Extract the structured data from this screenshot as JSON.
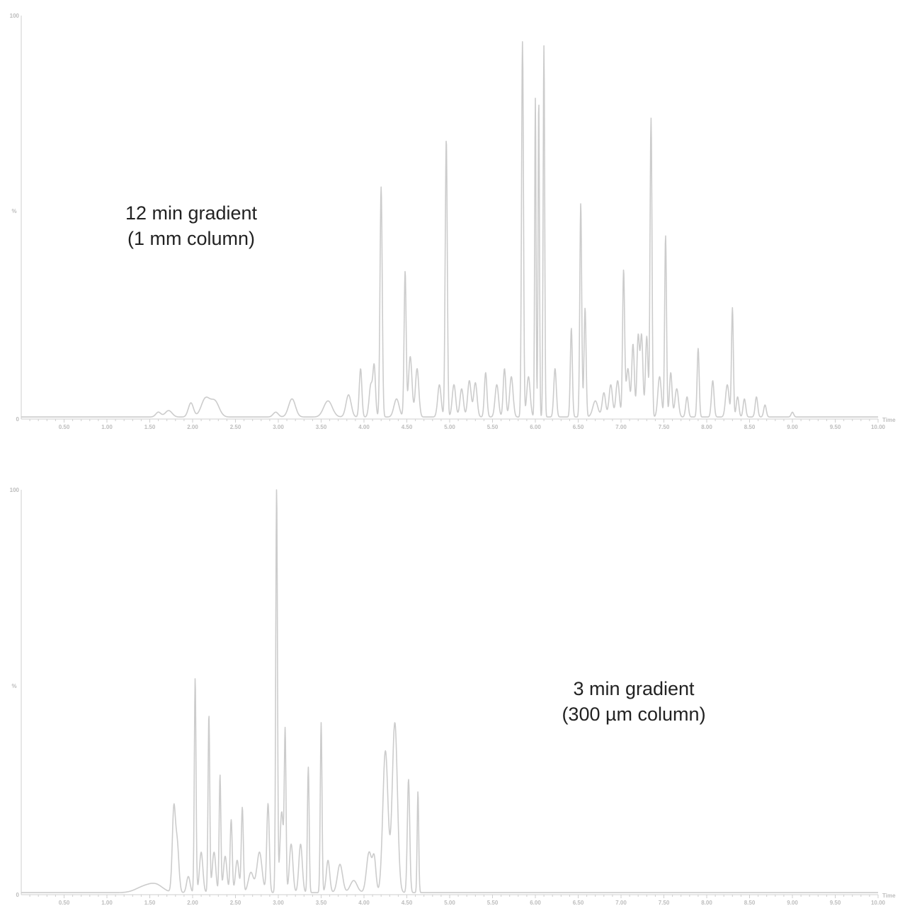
{
  "chart_data": [
    {
      "type": "line",
      "title": "",
      "annotation": [
        "12 min gradient",
        "(1 mm column)"
      ],
      "xlabel": "Time",
      "ylabel": "%",
      "xlim": [
        0,
        10.0
      ],
      "ylim": [
        0,
        100
      ],
      "x_ticks": [
        "0.50",
        "1.00",
        "1.50",
        "2.00",
        "2.50",
        "3.00",
        "3.50",
        "4.00",
        "4.50",
        "5.00",
        "5.50",
        "6.00",
        "6.50",
        "7.00",
        "7.50",
        "8.00",
        "8.50",
        "9.00",
        "9.50",
        "10.00"
      ],
      "y_tick_top": "100",
      "y_tick_bottom": "0",
      "baseline": 0.5,
      "peaks": [
        [
          1.6,
          1.2,
          0.03
        ],
        [
          1.72,
          1.6,
          0.04
        ],
        [
          1.98,
          3.5,
          0.03
        ],
        [
          2.15,
          4.5,
          0.05
        ],
        [
          2.26,
          3.8,
          0.05
        ],
        [
          2.97,
          1.2,
          0.03
        ],
        [
          3.16,
          4.5,
          0.04
        ],
        [
          3.58,
          4.0,
          0.05
        ],
        [
          3.82,
          5.5,
          0.03
        ],
        [
          3.96,
          12.0,
          0.015
        ],
        [
          4.08,
          8.0,
          0.02
        ],
        [
          4.12,
          12.0,
          0.015
        ],
        [
          4.2,
          57.0,
          0.013
        ],
        [
          4.38,
          4.5,
          0.03
        ],
        [
          4.48,
          36.0,
          0.012
        ],
        [
          4.54,
          15.0,
          0.02
        ],
        [
          4.62,
          12.0,
          0.02
        ],
        [
          4.88,
          8.0,
          0.02
        ],
        [
          4.96,
          69.0,
          0.012
        ],
        [
          5.05,
          8.0,
          0.02
        ],
        [
          5.14,
          7.0,
          0.02
        ],
        [
          5.23,
          9.0,
          0.02
        ],
        [
          5.3,
          8.5,
          0.02
        ],
        [
          5.42,
          11.0,
          0.015
        ],
        [
          5.55,
          8.0,
          0.02
        ],
        [
          5.64,
          12.0,
          0.015
        ],
        [
          5.72,
          10.0,
          0.02
        ],
        [
          5.85,
          93.0,
          0.011
        ],
        [
          5.92,
          10.0,
          0.02
        ],
        [
          6.0,
          79.0,
          0.008
        ],
        [
          6.04,
          79.0,
          0.008
        ],
        [
          6.1,
          92.0,
          0.009
        ],
        [
          6.23,
          12.0,
          0.015
        ],
        [
          6.42,
          22.0,
          0.012
        ],
        [
          6.53,
          53.0,
          0.011
        ],
        [
          6.58,
          27.0,
          0.012
        ],
        [
          6.7,
          4.0,
          0.03
        ],
        [
          6.8,
          6.0,
          0.02
        ],
        [
          6.88,
          8.0,
          0.02
        ],
        [
          6.96,
          9.0,
          0.02
        ],
        [
          7.03,
          36.0,
          0.012
        ],
        [
          7.08,
          12.0,
          0.02
        ],
        [
          7.14,
          18.0,
          0.015
        ],
        [
          7.2,
          20.0,
          0.015
        ],
        [
          7.24,
          20.0,
          0.015
        ],
        [
          7.3,
          20.0,
          0.015
        ],
        [
          7.35,
          74.0,
          0.011
        ],
        [
          7.45,
          10.0,
          0.02
        ],
        [
          7.52,
          45.0,
          0.011
        ],
        [
          7.58,
          11.0,
          0.015
        ],
        [
          7.65,
          7.0,
          0.02
        ],
        [
          7.77,
          5.0,
          0.015
        ],
        [
          7.9,
          17.0,
          0.012
        ],
        [
          8.07,
          9.0,
          0.015
        ],
        [
          8.24,
          8.0,
          0.02
        ],
        [
          8.3,
          27.0,
          0.011
        ],
        [
          8.36,
          5.0,
          0.015
        ],
        [
          8.44,
          4.5,
          0.015
        ],
        [
          8.58,
          5.0,
          0.015
        ],
        [
          8.68,
          3.0,
          0.015
        ],
        [
          9.0,
          1.2,
          0.015
        ]
      ]
    },
    {
      "type": "line",
      "title": "",
      "annotation": [
        "3 min gradient",
        "(300 µm column)"
      ],
      "xlabel": "Time",
      "ylabel": "%",
      "xlim": [
        0,
        10.0
      ],
      "ylim": [
        0,
        100
      ],
      "x_ticks": [
        "0.50",
        "1.00",
        "1.50",
        "2.00",
        "2.50",
        "3.00",
        "3.50",
        "4.00",
        "4.50",
        "5.00",
        "5.50",
        "6.00",
        "6.50",
        "7.00",
        "7.50",
        "8.00",
        "8.50",
        "9.00",
        "9.50",
        "10.00"
      ],
      "y_tick_top": "100",
      "y_tick_bottom": "0",
      "baseline": 0.5,
      "peaks": [
        [
          1.44,
          1.5,
          0.1
        ],
        [
          1.58,
          1.6,
          0.08
        ],
        [
          1.78,
          20.0,
          0.018
        ],
        [
          1.82,
          12.0,
          0.02
        ],
        [
          1.95,
          4.0,
          0.02
        ],
        [
          2.03,
          53.0,
          0.01
        ],
        [
          2.1,
          10.0,
          0.02
        ],
        [
          2.19,
          44.0,
          0.01
        ],
        [
          2.25,
          10.0,
          0.02
        ],
        [
          2.32,
          29.0,
          0.01
        ],
        [
          2.38,
          9.0,
          0.02
        ],
        [
          2.45,
          18.0,
          0.012
        ],
        [
          2.52,
          8.0,
          0.02
        ],
        [
          2.58,
          21.0,
          0.012
        ],
        [
          2.68,
          5.0,
          0.03
        ],
        [
          2.78,
          10.0,
          0.03
        ],
        [
          2.88,
          22.0,
          0.015
        ],
        [
          2.98,
          100.0,
          0.01
        ],
        [
          3.04,
          20.0,
          0.02
        ],
        [
          3.08,
          38.0,
          0.01
        ],
        [
          3.15,
          12.0,
          0.02
        ],
        [
          3.26,
          12.0,
          0.02
        ],
        [
          3.35,
          31.0,
          0.01
        ],
        [
          3.5,
          42.0,
          0.01
        ],
        [
          3.58,
          8.0,
          0.02
        ],
        [
          3.72,
          7.0,
          0.03
        ],
        [
          3.88,
          3.0,
          0.04
        ],
        [
          4.06,
          10.0,
          0.03
        ],
        [
          4.12,
          8.0,
          0.02
        ],
        [
          4.25,
          35.0,
          0.03
        ],
        [
          4.36,
          42.0,
          0.03
        ],
        [
          4.52,
          28.0,
          0.014
        ],
        [
          4.63,
          25.0,
          0.009
        ]
      ]
    }
  ]
}
